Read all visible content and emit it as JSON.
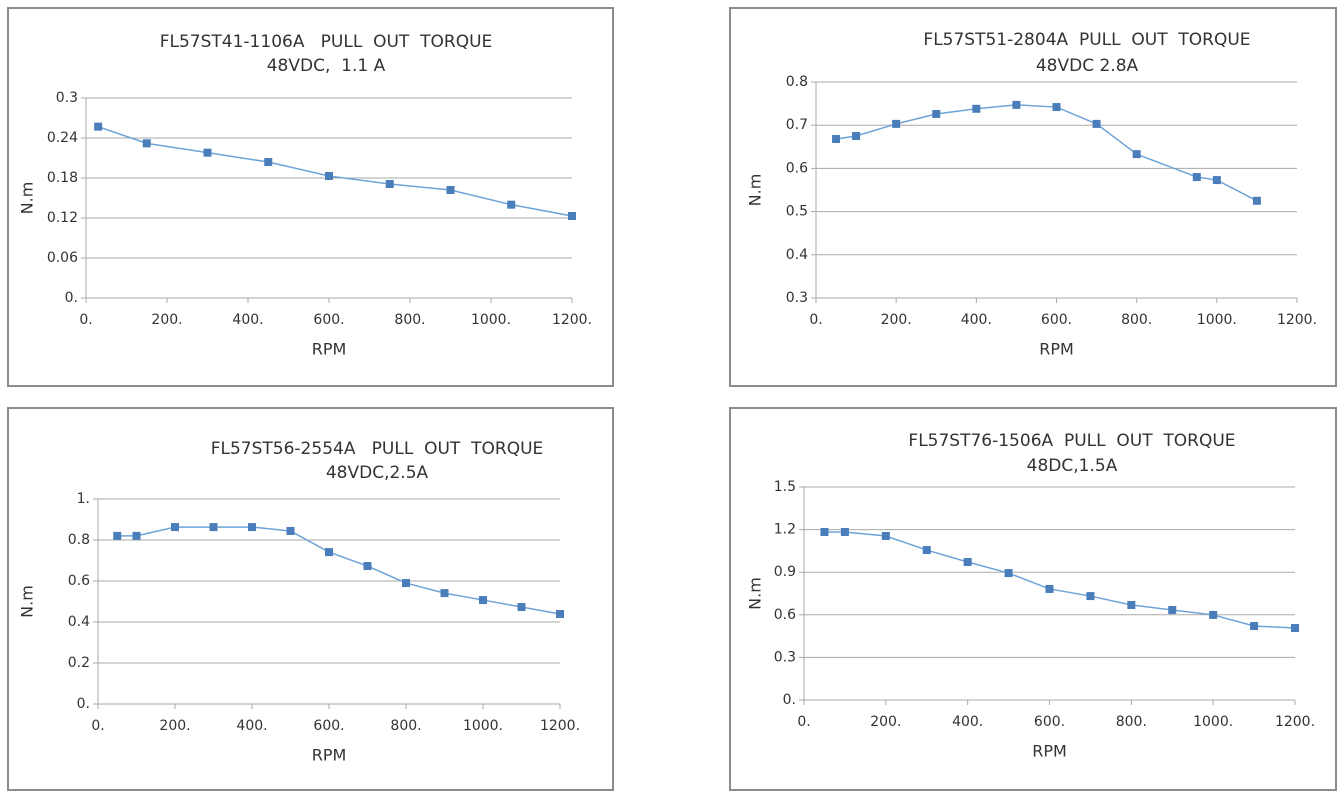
{
  "chart_data": [
    {
      "type": "line",
      "title": "FL57ST41-1106A   PULL  OUT  TORQUE",
      "subtitle": "48VDC,  1.1 A",
      "x_label": "RPM",
      "y_label": "N.m",
      "grid": true,
      "xlim": [
        0,
        1200
      ],
      "ylim": [
        0,
        0.3
      ],
      "xticks": [
        {
          "value": 0,
          "label": "0."
        },
        {
          "value": 200,
          "label": "200."
        },
        {
          "value": 400,
          "label": "400."
        },
        {
          "value": 600,
          "label": "600."
        },
        {
          "value": 800,
          "label": "800."
        },
        {
          "value": 1000,
          "label": "1000."
        },
        {
          "value": 1200,
          "label": "1200."
        }
      ],
      "yticks": [
        {
          "value": 0,
          "label": "0."
        },
        0.06,
        0.12,
        0.18,
        0.24,
        0.3
      ],
      "x": [
        30,
        150,
        300,
        450,
        600,
        750,
        900,
        1050,
        1200
      ],
      "series": [
        {
          "color": "#4a7ebb",
          "values": [
            0.257,
            0.232,
            0.218,
            0.204,
            0.183,
            0.171,
            0.162,
            0.14,
            0.123
          ]
        }
      ]
    },
    {
      "type": "line",
      "title": "FL57ST51-2804A  PULL  OUT  TORQUE",
      "subtitle": "48VDC 2.8A",
      "x_label": "RPM",
      "y_label": "N.m",
      "grid": true,
      "xlim": [
        0,
        1200
      ],
      "ylim": [
        0.3,
        0.8
      ],
      "xticks": [
        {
          "value": 0,
          "label": "0."
        },
        {
          "value": 200,
          "label": "200."
        },
        {
          "value": 400,
          "label": "400."
        },
        {
          "value": 600,
          "label": "600."
        },
        {
          "value": 800,
          "label": "800."
        },
        {
          "value": 1000,
          "label": "1000."
        },
        {
          "value": 1200,
          "label": "1200."
        }
      ],
      "yticks": [
        0.3,
        0.4,
        0.5,
        0.6,
        0.7,
        0.8
      ],
      "x": [
        50,
        100,
        200,
        300,
        400,
        500,
        600,
        700,
        800,
        950,
        1000,
        1100
      ],
      "series": [
        {
          "color": "#4a7ebb",
          "values": [
            0.668,
            0.675,
            0.703,
            0.726,
            0.738,
            0.747,
            0.742,
            0.703,
            0.633,
            0.58,
            0.573,
            0.525
          ]
        }
      ]
    },
    {
      "type": "line",
      "title": "FL57ST56-2554A   PULL  OUT  TORQUE",
      "subtitle": "48VDC,2.5A",
      "x_label": "RPM",
      "y_label": "N.m",
      "grid": true,
      "xlim": [
        0,
        1200
      ],
      "ylim": [
        0,
        1
      ],
      "xticks": [
        {
          "value": 0,
          "label": "0."
        },
        {
          "value": 200,
          "label": "200."
        },
        {
          "value": 400,
          "label": "400."
        },
        {
          "value": 600,
          "label": "600."
        },
        {
          "value": 800,
          "label": "800."
        },
        {
          "value": 1000,
          "label": "1000."
        },
        {
          "value": 1200,
          "label": "1200."
        }
      ],
      "yticks": [
        {
          "value": 0,
          "label": "0."
        },
        0.2,
        0.4,
        0.6,
        0.8,
        {
          "value": 1,
          "label": "1."
        }
      ],
      "x": [
        50,
        100,
        200,
        300,
        400,
        500,
        600,
        700,
        800,
        900,
        1000,
        1100,
        1200
      ],
      "series": [
        {
          "color": "#4a7ebb",
          "values": [
            0.82,
            0.82,
            0.863,
            0.863,
            0.863,
            0.844,
            0.741,
            0.673,
            0.59,
            0.541,
            0.507,
            0.473,
            0.439
          ]
        }
      ]
    },
    {
      "type": "line",
      "title": "FL57ST76-1506A  PULL  OUT  TORQUE",
      "subtitle": "48DC,1.5A",
      "x_label": "RPM",
      "y_label": "N.m",
      "grid": true,
      "xlim": [
        0,
        1200
      ],
      "ylim": [
        0,
        1.5
      ],
      "xticks": [
        {
          "value": 0,
          "label": "0."
        },
        {
          "value": 200,
          "label": "200."
        },
        {
          "value": 400,
          "label": "400."
        },
        {
          "value": 600,
          "label": "600."
        },
        {
          "value": 800,
          "label": "800."
        },
        {
          "value": 1000,
          "label": "1000."
        },
        {
          "value": 1200,
          "label": "1200."
        }
      ],
      "yticks": [
        {
          "value": 0,
          "label": "0."
        },
        0.3,
        0.6,
        0.9,
        1.2,
        1.5
      ],
      "x": [
        50,
        100,
        200,
        300,
        400,
        500,
        600,
        700,
        800,
        900,
        1000,
        1100,
        1200
      ],
      "series": [
        {
          "color": "#4a7ebb",
          "values": [
            1.183,
            1.183,
            1.155,
            1.056,
            0.972,
            0.894,
            0.782,
            0.732,
            0.669,
            0.634,
            0.599,
            0.521,
            0.507
          ]
        }
      ]
    }
  ]
}
